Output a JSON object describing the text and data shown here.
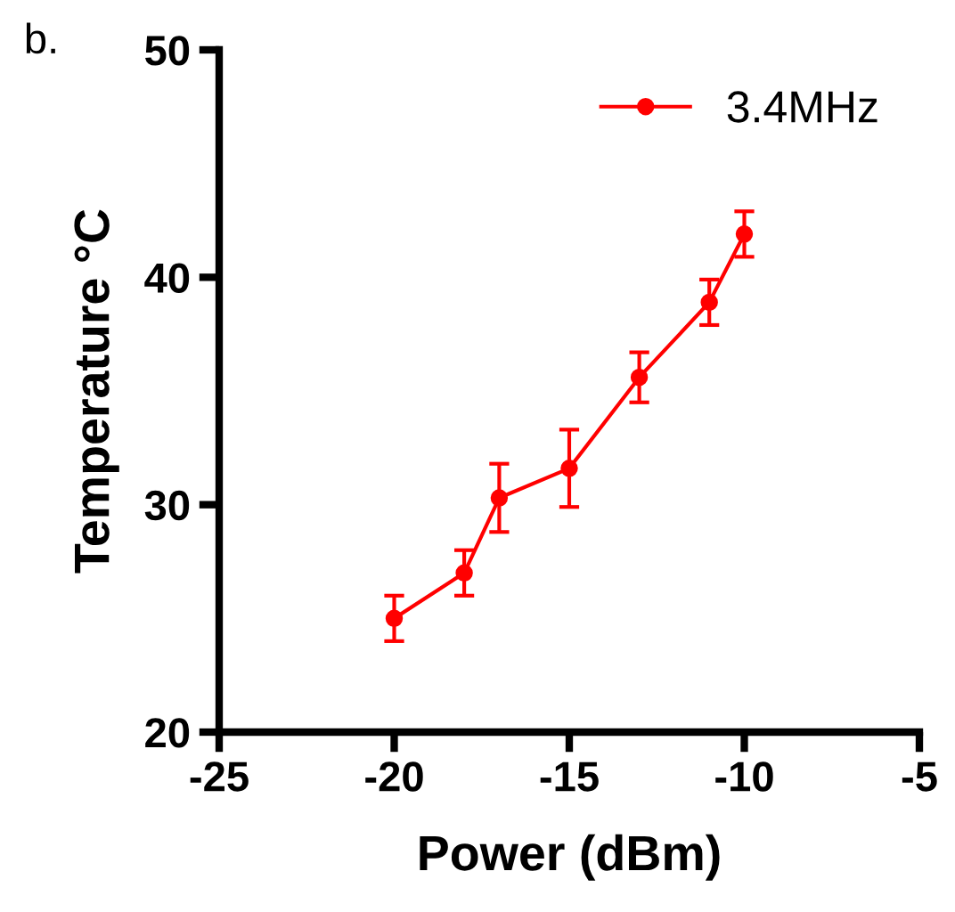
{
  "chart_data": {
    "type": "line",
    "xlabel": "Power (dBm)",
    "ylabel": "Temperature °C",
    "annotations": [
      "b."
    ],
    "x": [
      -20,
      -18,
      -17,
      -15,
      -13,
      -11,
      -10
    ],
    "series": [
      {
        "name": "3.4MHz",
        "color": "#ff0000",
        "values": [
          25.0,
          27.0,
          30.3,
          31.6,
          35.6,
          38.9,
          41.9
        ],
        "errors": [
          1.0,
          1.0,
          1.5,
          1.7,
          1.1,
          1.0,
          1.0
        ]
      }
    ],
    "xlim": [
      -25,
      -5
    ],
    "xticks": [
      -25,
      -20,
      -15,
      -10,
      -5
    ],
    "ylim": [
      20,
      50
    ],
    "yticks": [
      20,
      30,
      40,
      50
    ],
    "grid": false,
    "legend": "top right",
    "marker": "circle",
    "line_style": "solid"
  }
}
